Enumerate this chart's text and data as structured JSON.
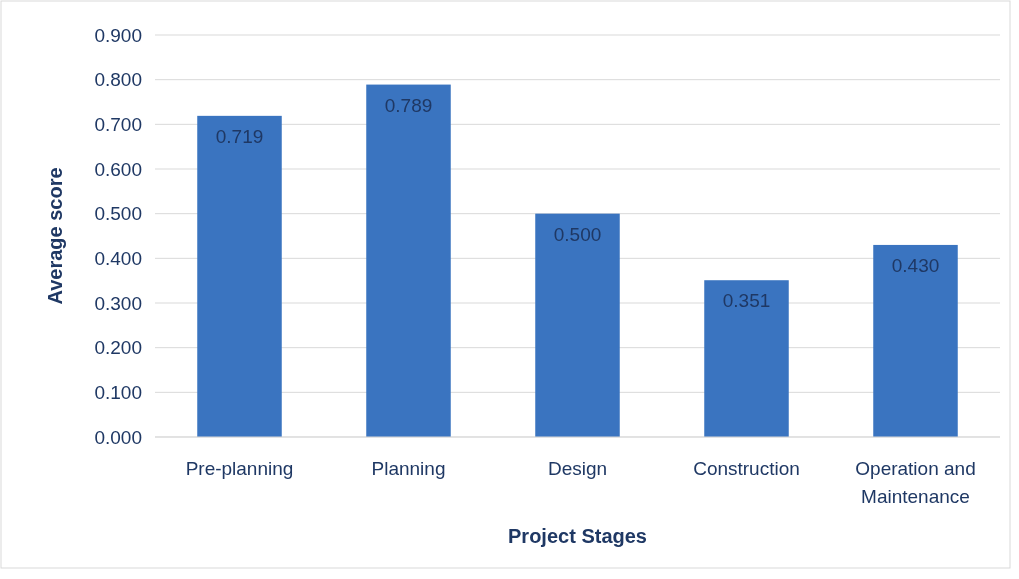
{
  "chart_data": {
    "type": "bar",
    "xlabel": "Project Stages",
    "ylabel": "Average score",
    "categories": [
      "Pre-planning",
      "Planning",
      "Design",
      "Construction",
      "Operation and Maintenance"
    ],
    "values": [
      0.719,
      0.789,
      0.5,
      0.351,
      0.43
    ],
    "color": "#3a74c0",
    "ylim": [
      0,
      0.9
    ],
    "yticks": [
      {
        "value": 0,
        "label": "0.000"
      },
      {
        "value": 0.1,
        "label": "0.100"
      },
      {
        "value": 0.2,
        "label": "0.200"
      },
      {
        "value": 0.3,
        "label": "0.300"
      },
      {
        "value": 0.4,
        "label": "0.400"
      },
      {
        "value": 0.5,
        "label": "0.500"
      },
      {
        "value": 0.6,
        "label": "0.600"
      },
      {
        "value": 0.7,
        "label": "0.700"
      },
      {
        "value": 0.8,
        "label": "0.800"
      },
      {
        "value": 0.9,
        "label": "0.900"
      }
    ],
    "grid": "y",
    "value_labels": [
      "0.719",
      "0.789",
      "0.500",
      "0.351",
      "0.430"
    ]
  }
}
